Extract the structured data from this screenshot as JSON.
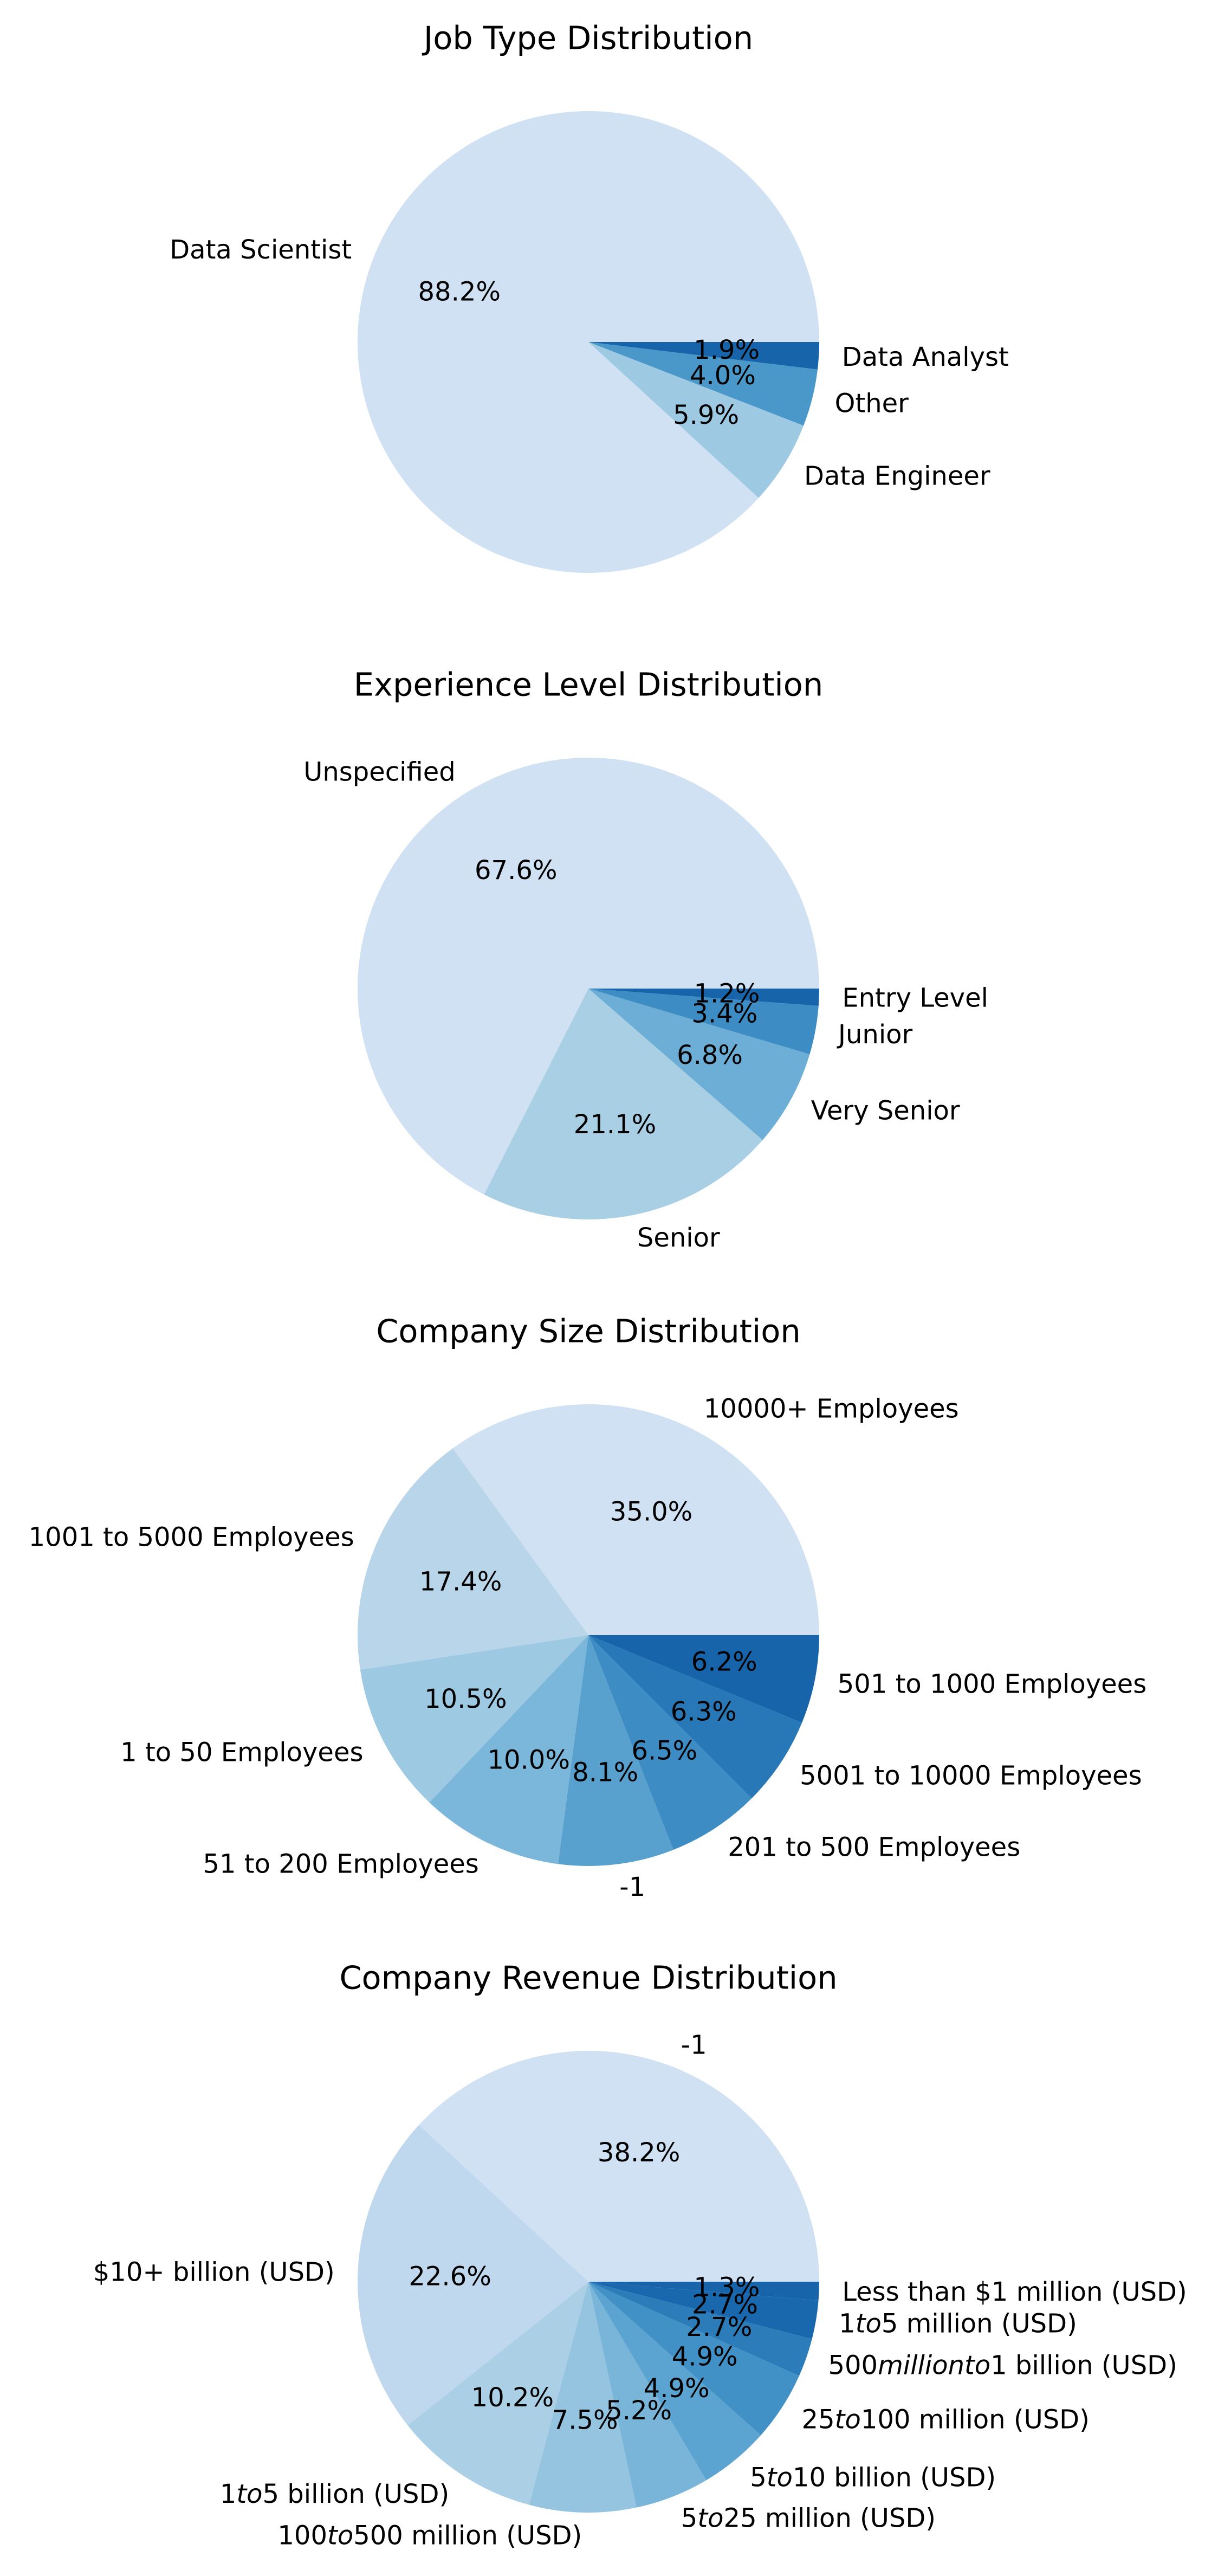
{
  "chart_data": [
    {
      "type": "pie",
      "title": "Job Type Distribution",
      "categories": [
        "Data Scientist",
        "Data Engineer",
        "Other",
        "Data Analyst"
      ],
      "values": [
        88.2,
        5.9,
        4.0,
        1.9
      ],
      "pct_labels": [
        "88.2%",
        "5.9%",
        "4.0%",
        "1.9%"
      ],
      "colors": [
        "#cfe1f2",
        "#9dc9e2",
        "#4a98c9",
        "#1764ab"
      ]
    },
    {
      "type": "pie",
      "title": "Experience Level Distribution",
      "categories": [
        "Unspecified",
        "Senior",
        "Very Senior",
        "Junior",
        "Entry Level"
      ],
      "values": [
        67.6,
        21.1,
        6.8,
        3.4,
        1.2
      ],
      "pct_labels": [
        "67.6%",
        "21.1%",
        "6.8%",
        "3.4%",
        "1.2%"
      ],
      "colors": [
        "#cfe1f2",
        "#a9cfe5",
        "#6caed6",
        "#3d8dc4",
        "#1764ab"
      ]
    },
    {
      "type": "pie",
      "title": "Company Size Distribution",
      "categories": [
        "10000+ Employees",
        "1001 to 5000 Employees",
        "1 to 50 Employees",
        "51 to 200 Employees",
        "-1",
        "201 to 500 Employees",
        "5001 to 10000 Employees",
        "501 to 1000 Employees"
      ],
      "values": [
        35.0,
        17.4,
        10.5,
        10.0,
        8.1,
        6.5,
        6.3,
        6.2
      ],
      "pct_labels": [
        "35.0%",
        "17.4%",
        "10.5%",
        "10.0%",
        "8.1%",
        "6.5%",
        "6.3%",
        "6.2%"
      ],
      "colors": [
        "#cfe1f2",
        "#b8d5ea",
        "#9dc9e2",
        "#7bb7da",
        "#58a1cf",
        "#3d8dc4",
        "#2878b8",
        "#1764ab"
      ]
    },
    {
      "type": "pie",
      "title": "Company Revenue Distribution",
      "categories": [
        "-1",
        "$10+ billion (USD)",
        "$1 to $5 billion (USD)",
        "$100 to $500 million (USD)",
        "$5 to $25 million (USD)",
        "$5 to $10 billion (USD)",
        "$25 to $100 million (USD)",
        "$500 million to $1 billion (USD)",
        "$1 to $5 million (USD)",
        "Less than $1 million (USD)"
      ],
      "category_display": [
        [
          {
            "t": "-1"
          }
        ],
        [
          {
            "t": "$10+ billion (USD)"
          }
        ],
        [
          {
            "t": "1"
          },
          {
            "t": "to",
            "i": true
          },
          {
            "t": "5 billion (USD)"
          }
        ],
        [
          {
            "t": "100"
          },
          {
            "t": "to",
            "i": true
          },
          {
            "t": "500 million (USD)"
          }
        ],
        [
          {
            "t": "5"
          },
          {
            "t": "to",
            "i": true
          },
          {
            "t": "25 million (USD)"
          }
        ],
        [
          {
            "t": "5"
          },
          {
            "t": "to",
            "i": true
          },
          {
            "t": "10 billion (USD)"
          }
        ],
        [
          {
            "t": "25"
          },
          {
            "t": "to",
            "i": true
          },
          {
            "t": "100 million (USD)"
          }
        ],
        [
          {
            "t": "500"
          },
          {
            "t": "millionto",
            "i": true
          },
          {
            "t": "1 billion (USD)"
          }
        ],
        [
          {
            "t": "1"
          },
          {
            "t": "to",
            "i": true
          },
          {
            "t": "5 million (USD)"
          }
        ],
        [
          {
            "t": "Less than $1 million (USD)"
          }
        ]
      ],
      "values": [
        38.2,
        22.6,
        10.2,
        7.5,
        5.2,
        4.9,
        4.9,
        2.7,
        2.7,
        1.3
      ],
      "pct_labels": [
        "38.2%",
        "22.6%",
        "10.2%",
        "7.5%",
        "5.2%",
        "4.9%",
        "4.9%",
        "2.7%",
        "2.7%",
        "1.3%"
      ],
      "colors": [
        "#cfe1f2",
        "#bfd8ed",
        "#abd0e6",
        "#94c4df",
        "#79b5d9",
        "#5ba3d0",
        "#4191c6",
        "#2c7cba",
        "#1968ad",
        "#1764ab"
      ]
    }
  ]
}
